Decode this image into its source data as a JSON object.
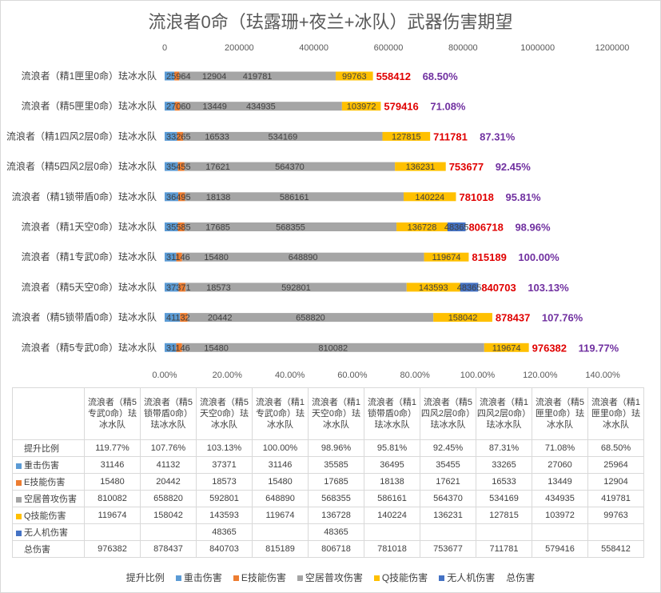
{
  "chart_data": {
    "type": "bar",
    "orientation": "horizontal-stacked",
    "title": "流浪者0命（珐露珊+夜兰+冰队）武器伤害期望",
    "top_axis_ticks": [
      "0",
      "200000",
      "400000",
      "600000",
      "800000",
      "1000000",
      "1200000"
    ],
    "top_axis_range": [
      0,
      1200000
    ],
    "bottom_axis_ticks": [
      "0.00%",
      "20.00%",
      "40.00%",
      "60.00%",
      "80.00%",
      "100.00%",
      "120.00%",
      "140.00%"
    ],
    "categories": [
      "流浪者（精1匣里0命）珐冰水队",
      "流浪者（精5匣里0命）珐冰水队",
      "流浪者（精1四风2层0命）珐冰水队",
      "流浪者（精5四风2层0命）珐冰水队",
      "流浪者（精1锁带盾0命）珐冰水队",
      "流浪者（精1天空0命）珐冰水队",
      "流浪者（精1专武0命）珐冰水队",
      "流浪者（精5天空0命）珐冰水队",
      "流浪者（精5锁带盾0命）珐冰水队",
      "流浪者（精5专武0命）珐冰水队"
    ],
    "series": [
      {
        "name": "重击伤害",
        "color": "#5b9bd5",
        "values": [
          25964,
          27060,
          33265,
          35455,
          36495,
          35585,
          31146,
          37371,
          41132,
          31146
        ],
        "labels": [
          "25964",
          "27060",
          "33265",
          "35455",
          "36495",
          "35585",
          "31146",
          "37371",
          "41132",
          "31146"
        ]
      },
      {
        "name": "E技能伤害",
        "color": "#ed7d31",
        "values": [
          12904,
          13449,
          16533,
          17621,
          18138,
          17685,
          15480,
          18573,
          20442,
          15480
        ],
        "labels": [
          "12904",
          "13449",
          "16533",
          "17621",
          "18138",
          "17685",
          "15480",
          "18573",
          "20442",
          "15480"
        ]
      },
      {
        "name": "空居普攻伤害",
        "color": "#a5a5a5",
        "values": [
          419781,
          434935,
          534169,
          564370,
          586161,
          568355,
          648890,
          592801,
          658820,
          810082
        ],
        "labels": [
          "419781",
          "434935",
          "534169",
          "564370",
          "586161",
          "568355",
          "648890",
          "592801",
          "658820",
          "810082"
        ]
      },
      {
        "name": "Q技能伤害",
        "color": "#ffc000",
        "values": [
          99763,
          103972,
          127815,
          136231,
          140224,
          136728,
          119674,
          143593,
          158042,
          119674
        ],
        "labels": [
          "99763",
          "103972",
          "127815",
          "136231",
          "140224",
          "136728",
          "119674",
          "143593",
          "158042",
          "119674"
        ]
      },
      {
        "name": "无人机伤害",
        "color": "#4472c4",
        "values": [
          0,
          0,
          0,
          0,
          0,
          48365,
          0,
          48365,
          0,
          0
        ],
        "labels": [
          "",
          "",
          "",
          "",
          "",
          "48365",
          "",
          "48365",
          "",
          ""
        ]
      }
    ],
    "totals": [
      "558412",
      "579416",
      "711781",
      "753677",
      "781018",
      "806718",
      "815189",
      "840703",
      "878437",
      "976382"
    ],
    "ratios": [
      "68.50%",
      "71.08%",
      "87.31%",
      "92.45%",
      "95.81%",
      "98.96%",
      "100.00%",
      "103.13%",
      "107.76%",
      "119.77%"
    ]
  },
  "table": {
    "columns": [
      "流浪者（精5专武0命）珐冰水队",
      "流浪者（精5锁带盾0命）珐冰水队",
      "流浪者（精5天空0命）珐冰水队",
      "流浪者（精1专武0命）珐冰水队",
      "流浪者（精1天空0命）珐冰水队",
      "流浪者（精1锁带盾0命）珐冰水队",
      "流浪者（精5四风2层0命）珐冰水队",
      "流浪者（精1四风2层0命）珐冰水队",
      "流浪者（精5匣里0命）珐冰水队",
      "流浪者（精1匣里0命）珐冰水队"
    ],
    "rows": [
      {
        "label": "提升比例",
        "color": "",
        "cells": [
          "119.77%",
          "107.76%",
          "103.13%",
          "100.00%",
          "98.96%",
          "95.81%",
          "92.45%",
          "87.31%",
          "71.08%",
          "68.50%"
        ]
      },
      {
        "label": "重击伤害",
        "color": "#5b9bd5",
        "cells": [
          "31146",
          "41132",
          "37371",
          "31146",
          "35585",
          "36495",
          "35455",
          "33265",
          "27060",
          "25964"
        ]
      },
      {
        "label": "E技能伤害",
        "color": "#ed7d31",
        "cells": [
          "15480",
          "20442",
          "18573",
          "15480",
          "17685",
          "18138",
          "17621",
          "16533",
          "13449",
          "12904"
        ]
      },
      {
        "label": "空居普攻伤害",
        "color": "#a5a5a5",
        "cells": [
          "810082",
          "658820",
          "592801",
          "648890",
          "568355",
          "586161",
          "564370",
          "534169",
          "434935",
          "419781"
        ]
      },
      {
        "label": "Q技能伤害",
        "color": "#ffc000",
        "cells": [
          "119674",
          "158042",
          "143593",
          "119674",
          "136728",
          "140224",
          "136231",
          "127815",
          "103972",
          "99763"
        ]
      },
      {
        "label": "无人机伤害",
        "color": "#4472c4",
        "cells": [
          "",
          "",
          "48365",
          "",
          "48365",
          "",
          "",
          "",
          "",
          ""
        ]
      },
      {
        "label": "总伤害",
        "color": "",
        "cells": [
          "976382",
          "878437",
          "840703",
          "815189",
          "806718",
          "781018",
          "753677",
          "711781",
          "579416",
          "558412"
        ]
      }
    ]
  },
  "legend": [
    {
      "label": "提升比例",
      "color": ""
    },
    {
      "label": "重击伤害",
      "color": "#5b9bd5"
    },
    {
      "label": "E技能伤害",
      "color": "#ed7d31"
    },
    {
      "label": "空居普攻伤害",
      "color": "#a5a5a5"
    },
    {
      "label": "Q技能伤害",
      "color": "#ffc000"
    },
    {
      "label": "无人机伤害",
      "color": "#4472c4"
    },
    {
      "label": "总伤害",
      "color": ""
    }
  ]
}
